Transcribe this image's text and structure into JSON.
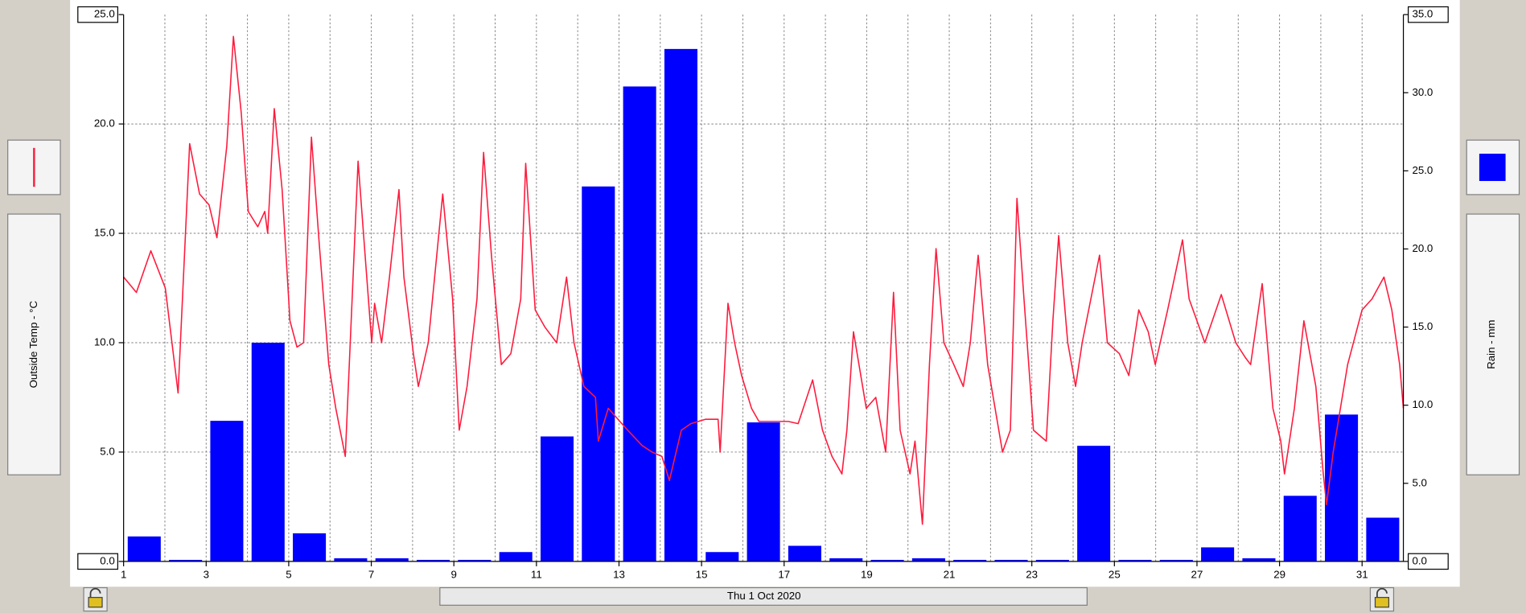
{
  "chart_data": {
    "type": "combo",
    "xlabel": "Thu 1 Oct 2020",
    "xlim": [
      1,
      32
    ],
    "xticks": [
      1,
      3,
      5,
      7,
      9,
      11,
      13,
      15,
      17,
      19,
      21,
      23,
      25,
      27,
      29,
      31
    ],
    "ylim": [
      0,
      25
    ],
    "yticks": [
      {
        "value": 0,
        "label": "0.0"
      },
      {
        "value": 5,
        "label": "5.0"
      },
      {
        "value": 10,
        "label": "10.0"
      },
      {
        "value": 15,
        "label": "15.0"
      },
      {
        "value": 20,
        "label": "20.0"
      },
      {
        "value": 25,
        "label": "25.0"
      }
    ],
    "y2lim": [
      0,
      35
    ],
    "y2ticks": [
      {
        "value": 0,
        "label": "0.0"
      },
      {
        "value": 5,
        "label": "5.0"
      },
      {
        "value": 10,
        "label": "10.0"
      },
      {
        "value": 15,
        "label": "15.0"
      },
      {
        "value": 20,
        "label": "20.0"
      },
      {
        "value": 25,
        "label": "25.0"
      },
      {
        "value": 30,
        "label": "30.0"
      },
      {
        "value": 35,
        "label": "35.0"
      }
    ],
    "grid": true,
    "series": [
      {
        "name": "Outside Temp - °C",
        "type": "line",
        "color": "#ff1a3c",
        "x": [
          1.0,
          1.31,
          1.66,
          2.01,
          2.32,
          2.6,
          2.84,
          3.07,
          3.26,
          3.5,
          3.66,
          3.85,
          4.02,
          4.25,
          4.42,
          4.49,
          4.65,
          4.84,
          5.03,
          5.2,
          5.36,
          5.55,
          5.74,
          5.97,
          6.14,
          6.37,
          6.49,
          6.68,
          6.85,
          7.01,
          7.08,
          7.25,
          7.44,
          7.67,
          7.79,
          8.02,
          8.14,
          8.38,
          8.73,
          8.97,
          9.13,
          9.32,
          9.56,
          9.72,
          9.91,
          10.15,
          10.38,
          10.62,
          10.74,
          10.97,
          11.21,
          11.49,
          11.73,
          11.91,
          12.15,
          12.43,
          12.5,
          12.74,
          13.21,
          13.56,
          13.8,
          14.04,
          14.22,
          14.51,
          14.74,
          15.1,
          15.4,
          15.45,
          15.64,
          15.8,
          15.97,
          16.21,
          16.39,
          16.75,
          17.1,
          17.34,
          17.69,
          17.93,
          18.16,
          18.4,
          18.52,
          18.68,
          18.99,
          19.22,
          19.46,
          19.65,
          19.81,
          20.05,
          20.17,
          20.35,
          20.52,
          20.68,
          20.87,
          21.11,
          21.34,
          21.51,
          21.65,
          21.7,
          21.93,
          22.29,
          22.48,
          22.64,
          22.81,
          23.04,
          23.35,
          23.51,
          23.65,
          23.87,
          24.06,
          24.22,
          24.64,
          24.83,
          25.12,
          25.35,
          25.59,
          25.82,
          25.99,
          26.29,
          26.65,
          26.81,
          27.19,
          27.59,
          27.94,
          28.18,
          28.3,
          28.58,
          28.84,
          29.03,
          29.12,
          29.36,
          29.59,
          29.88,
          30.06,
          30.14,
          30.3,
          30.65,
          31.0,
          31.24,
          31.53,
          31.72,
          31.91,
          32.0
        ],
        "values": [
          13.0,
          12.3,
          14.2,
          12.5,
          7.7,
          19.1,
          16.8,
          16.3,
          14.8,
          19.0,
          24.0,
          20.5,
          16.0,
          15.3,
          16.0,
          15.0,
          20.7,
          17.0,
          11.0,
          9.8,
          10.0,
          19.4,
          14.5,
          9.0,
          7.0,
          4.8,
          10.0,
          18.3,
          14.0,
          10.0,
          11.8,
          10.0,
          13.0,
          17.0,
          13.0,
          9.5,
          8.0,
          10.0,
          16.8,
          12.0,
          6.0,
          8.0,
          12.0,
          18.7,
          14.0,
          9.0,
          9.5,
          12.0,
          18.2,
          11.5,
          10.7,
          10.0,
          13.0,
          10.0,
          8.0,
          7.5,
          5.5,
          7.0,
          6.0,
          5.3,
          5.0,
          4.8,
          3.7,
          6.0,
          6.3,
          6.5,
          6.5,
          5.0,
          11.8,
          10.0,
          8.5,
          7.0,
          6.4,
          6.4,
          6.4,
          6.3,
          8.3,
          6.0,
          4.8,
          4.0,
          6.0,
          10.5,
          7.0,
          7.5,
          5.0,
          12.3,
          6.0,
          4.0,
          5.5,
          1.7,
          9.0,
          14.3,
          10.0,
          9.0,
          8.0,
          10.0,
          13.0,
          14.0,
          9.0,
          5.0,
          6.0,
          16.6,
          12.0,
          6.0,
          5.5,
          11.0,
          14.9,
          10.0,
          8.0,
          10.0,
          14.0,
          10.0,
          9.5,
          8.5,
          11.5,
          10.5,
          9.0,
          11.5,
          14.7,
          12.0,
          10.0,
          12.2,
          10.0,
          9.3,
          9.0,
          12.7,
          7.0,
          5.5,
          4.0,
          7.0,
          11.0,
          8.0,
          4.0,
          2.6,
          5.0,
          9.0,
          11.5,
          12.0,
          13.0,
          11.5,
          9.0,
          7.0
        ]
      },
      {
        "name": "Rain - mm",
        "type": "bar",
        "axis": "y2",
        "color": "#0000ff",
        "x": [
          1,
          2,
          3,
          4,
          5,
          6,
          7,
          8,
          9,
          10,
          11,
          12,
          13,
          14,
          15,
          16,
          17,
          18,
          19,
          20,
          21,
          22,
          23,
          24,
          25,
          26,
          27,
          28,
          29,
          30,
          31
        ],
        "values": [
          1.6,
          0.1,
          9.0,
          14.0,
          1.8,
          0.2,
          0.2,
          0.1,
          0.1,
          0.6,
          8.0,
          24.0,
          30.4,
          32.8,
          0.6,
          8.9,
          1.0,
          0.2,
          0.1,
          0.2,
          0.1,
          0.1,
          0.1,
          7.4,
          0.1,
          0.1,
          0.9,
          0.2,
          4.2,
          9.4,
          2.8
        ]
      }
    ]
  }
}
